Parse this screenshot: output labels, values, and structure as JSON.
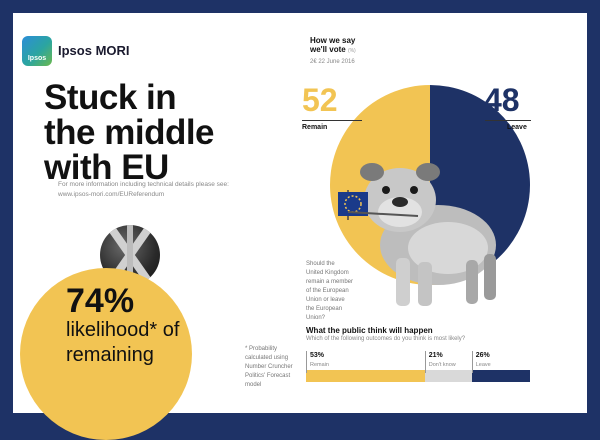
{
  "brand": {
    "logo_text": "Ipsos",
    "name": "Ipsos MORI"
  },
  "headline": [
    "Stuck in",
    "the middle",
    "with EU"
  ],
  "info": {
    "line1": "For more information including technical details please see:",
    "line2": "www.ipsos-mori.com/EUReferendum"
  },
  "likelihood": {
    "value": "74%",
    "lines": [
      "likelihood* of",
      "remaining"
    ],
    "footnote": [
      "* Probability",
      "calculated using",
      "Number Cruncher",
      "Politics' Forecast",
      "model"
    ]
  },
  "vote": {
    "title_lines": [
      "How we say",
      "we'll vote"
    ],
    "title_tag": "(%)",
    "date": "2€ 22 June 2016",
    "remain": {
      "value": "52",
      "label": "Remain"
    },
    "leave": {
      "value": "48",
      "label": "Leave"
    },
    "question_lines": [
      "Should the",
      "United Kingdom",
      "remain a member",
      "of the European",
      "Union or leave",
      "the European",
      "Union?"
    ]
  },
  "chart_data": {
    "type": "pie",
    "categories": [
      "Remain",
      "Leave"
    ],
    "values": [
      52,
      48
    ],
    "colors": [
      "#f2c453",
      "#1e3266"
    ]
  },
  "outcomes": {
    "title": "What the public think will happen",
    "subtitle": "Which of the following outcomes do you think is most likely?",
    "items": [
      {
        "pct": "53%",
        "label": "Remain",
        "value": 53,
        "color": "#f2c453"
      },
      {
        "pct": "21%",
        "label": "Don't know",
        "value": 21,
        "color": "#d9d9d9"
      },
      {
        "pct": "26%",
        "label": "Leave",
        "value": 26,
        "color": "#1e3266"
      }
    ]
  },
  "colors": {
    "frame": "#1e3266",
    "remain": "#f2c453",
    "leave": "#1e3266"
  }
}
